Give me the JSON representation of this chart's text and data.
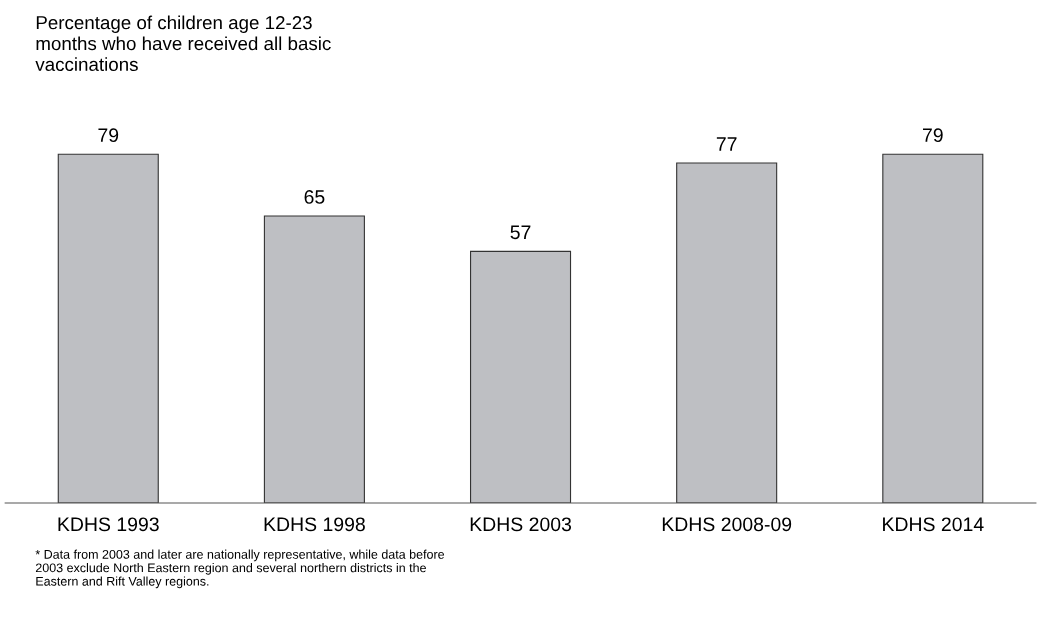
{
  "chart_data": {
    "type": "bar",
    "title": "Percentage of children age 12-23\nmonths who have received all basic\nvaccinations",
    "categories": [
      "KDHS 1993",
      "KDHS 1998",
      "KDHS 2003",
      "KDHS 2008-09",
      "KDHS 2014"
    ],
    "values": [
      79,
      65,
      57,
      77,
      79
    ],
    "color": "#bebfc3",
    "data_labels": true,
    "tick_labels": "x",
    "grid": false,
    "annotations": [
      "* Data from 2003 and later are nationally representative, while data before\n2003 exclude North Eastern region and several northern districts in the\nEastern and Rift Valley regions."
    ]
  }
}
